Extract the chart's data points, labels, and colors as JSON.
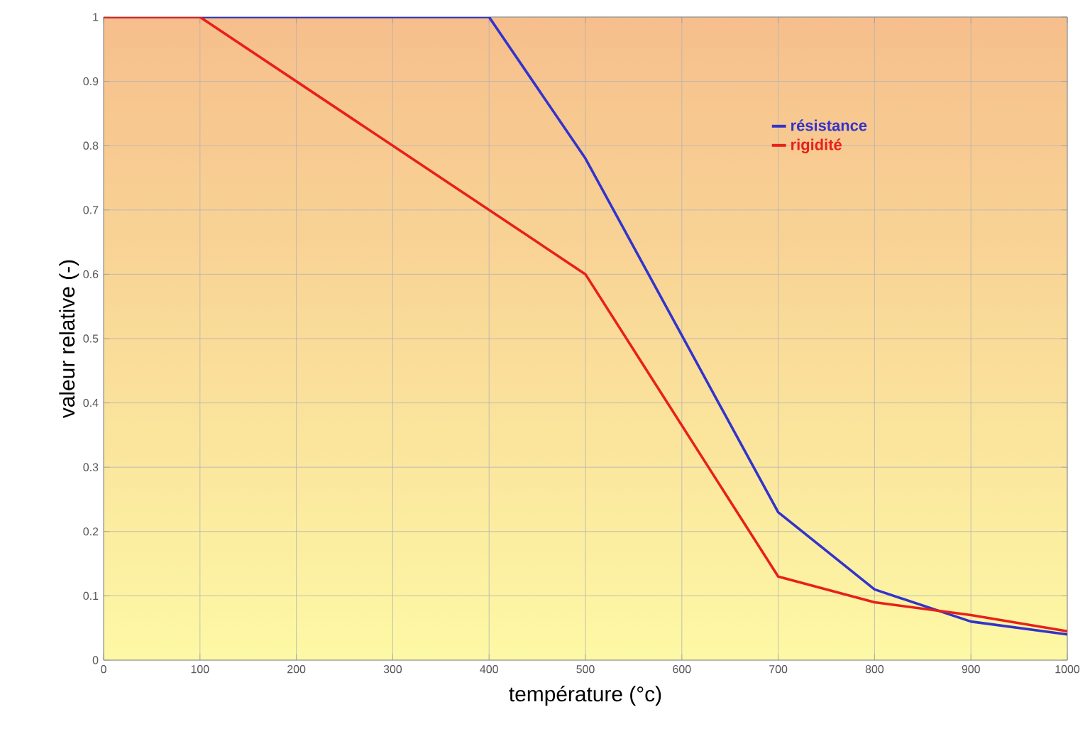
{
  "chart_data": {
    "type": "line",
    "xlabel": "température (°c)",
    "ylabel": "valeur relative (-)",
    "xlim": [
      0,
      1000
    ],
    "ylim": [
      0,
      1
    ],
    "xticks": [
      0,
      100,
      200,
      300,
      400,
      500,
      600,
      700,
      800,
      900,
      1000
    ],
    "yticks": [
      0,
      0.1,
      0.2,
      0.3,
      0.4,
      0.5,
      0.6,
      0.7,
      0.8,
      0.9,
      1
    ],
    "grid": true,
    "legend": "top right",
    "marker": "none",
    "line_style": "solid",
    "series": [
      {
        "name": "résistance",
        "color": "#3333cc",
        "x": [
          0,
          400,
          500,
          700,
          800,
          900,
          1000
        ],
        "values": [
          1,
          1,
          0.78,
          0.23,
          0.11,
          0.06,
          0.04
        ]
      },
      {
        "name": "rigidité",
        "color": "#e8201a",
        "x": [
          0,
          100,
          500,
          700,
          800,
          900,
          1000
        ],
        "values": [
          1,
          1,
          0.6,
          0.13,
          0.09,
          0.07,
          0.045
        ]
      }
    ]
  }
}
